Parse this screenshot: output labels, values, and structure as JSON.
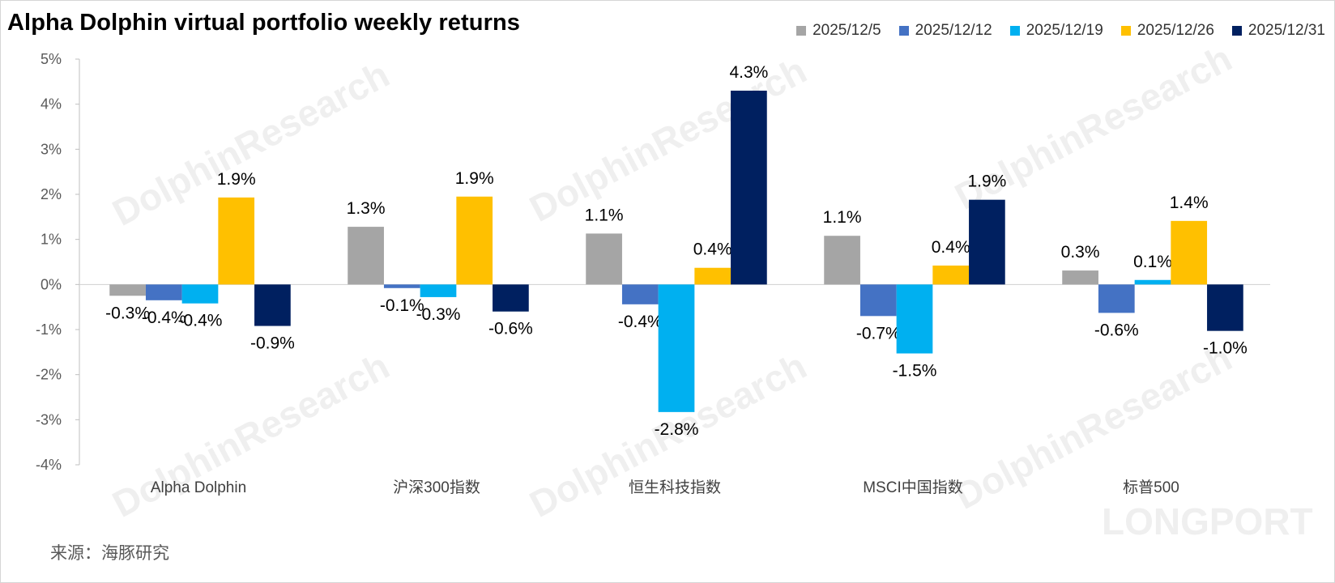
{
  "title": "Alpha Dolphin virtual portfolio weekly returns",
  "source": "来源：海豚研究",
  "watermark": {
    "text": "DolphinResearch",
    "brand": "LONGPORT",
    "color": "#efefef"
  },
  "colors": {
    "background": "#ffffff",
    "axis": "#bfbfbf",
    "series": [
      "#a5a5a5",
      "#4472c4",
      "#00b0f0",
      "#ffc000",
      "#002060"
    ]
  },
  "chart_data": {
    "type": "bar",
    "title": "Alpha Dolphin virtual portfolio weekly returns",
    "categories": [
      "Alpha Dolphin",
      "沪深300指数",
      "恒生科技指数",
      "MSCI中国指数",
      "标普500"
    ],
    "series": [
      {
        "name": "2025/12/5",
        "values": [
          -0.25,
          1.28,
          1.13,
          1.08,
          0.31
        ]
      },
      {
        "name": "2025/12/12",
        "values": [
          -0.35,
          -0.08,
          -0.44,
          -0.7,
          -0.63
        ]
      },
      {
        "name": "2025/12/19",
        "values": [
          -0.42,
          -0.28,
          -2.83,
          -1.53,
          0.1
        ]
      },
      {
        "name": "2025/12/26",
        "values": [
          1.93,
          1.95,
          0.37,
          0.42,
          1.41
        ]
      },
      {
        "name": "2025/12/31",
        "values": [
          -0.92,
          -0.6,
          4.3,
          1.88,
          -1.03
        ]
      }
    ],
    "data_labels": [
      [
        "-0.3%",
        "1.3%",
        "1.1%",
        "1.1%",
        "0.3%"
      ],
      [
        "-0.4%",
        "-0.1%",
        "-0.4%",
        "-0.7%",
        "-0.6%"
      ],
      [
        "-0.4%",
        "-0.3%",
        "-2.8%",
        "-1.5%",
        "0.1%"
      ],
      [
        "1.9%",
        "1.9%",
        "0.4%",
        "0.4%",
        "1.4%"
      ],
      [
        "-0.9%",
        "-0.6%",
        "4.3%",
        "1.9%",
        "-1.0%"
      ]
    ],
    "ylim": [
      -4,
      5
    ],
    "yticks": [
      5,
      4,
      3,
      2,
      1,
      0,
      -1,
      -2,
      -3,
      -4
    ],
    "ytick_labels": [
      "5%",
      "4%",
      "3%",
      "2%",
      "1%",
      "0%",
      "-1%",
      "-2%",
      "-3%",
      "-4%"
    ],
    "xlabel": "",
    "ylabel": "",
    "grid": false,
    "legend_position": "top-right"
  }
}
